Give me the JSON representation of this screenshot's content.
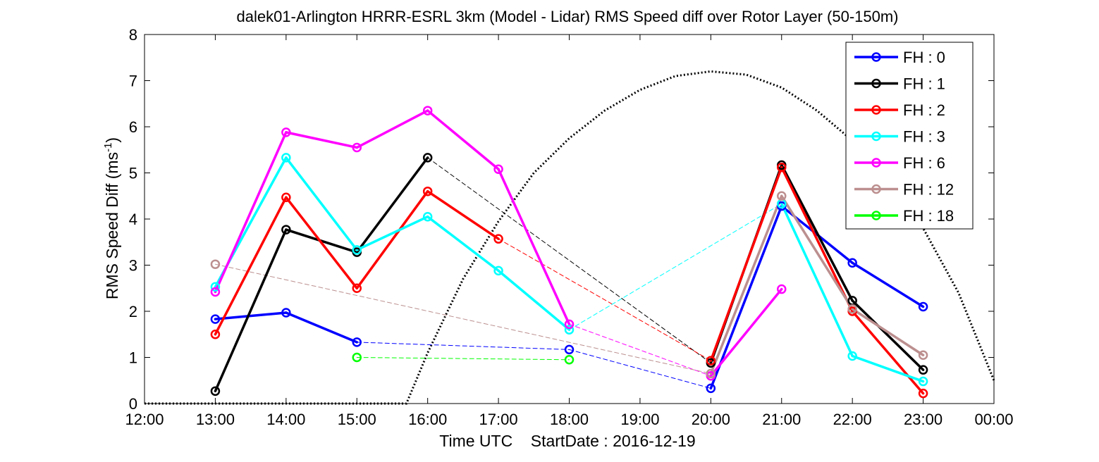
{
  "chart_data": {
    "type": "line",
    "title": "dalek01-Arlington HRRR-ESRL 3km (Model - Lidar) RMS Speed diff over Rotor Layer (50-150m)",
    "xlabel": "Time UTC    StartDate : 2016-12-19",
    "ylabel_main": "RMS Speed Diff (ms",
    "ylabel_sup": "-1",
    "ylabel_tail": ")",
    "xlim": [
      12,
      24
    ],
    "ylim": [
      0,
      8
    ],
    "x_ticks": [
      12,
      13,
      14,
      15,
      16,
      17,
      18,
      19,
      20,
      21,
      22,
      23,
      24
    ],
    "x_tick_labels": [
      "12:00",
      "13:00",
      "14:00",
      "15:00",
      "16:00",
      "17:00",
      "18:00",
      "19:00",
      "20:00",
      "21:00",
      "22:00",
      "23:00",
      "00:00"
    ],
    "y_ticks": [
      0,
      1,
      2,
      3,
      4,
      5,
      6,
      7,
      8
    ],
    "y_tick_labels": [
      "0",
      "1",
      "2",
      "3",
      "4",
      "5",
      "6",
      "7",
      "8"
    ],
    "legend_position": "top-right",
    "series": [
      {
        "name": "FH : 0",
        "color": "#0000ff",
        "points": [
          [
            13,
            1.83
          ],
          [
            14,
            1.97
          ],
          [
            15,
            1.33
          ],
          [
            18,
            1.17
          ],
          [
            20,
            0.33
          ],
          [
            21,
            4.28
          ],
          [
            22,
            3.05
          ],
          [
            23,
            2.1
          ]
        ]
      },
      {
        "name": "FH : 1",
        "color": "#000000",
        "points": [
          [
            13,
            0.27
          ],
          [
            14,
            3.77
          ],
          [
            15,
            3.28
          ],
          [
            16,
            5.33
          ],
          [
            20,
            0.88
          ],
          [
            21,
            5.17
          ],
          [
            22,
            2.23
          ],
          [
            23,
            0.73
          ]
        ]
      },
      {
        "name": "FH : 2",
        "color": "#ff0000",
        "points": [
          [
            13,
            1.5
          ],
          [
            14,
            4.47
          ],
          [
            15,
            2.5
          ],
          [
            16,
            4.6
          ],
          [
            17,
            3.57
          ],
          [
            20,
            0.93
          ],
          [
            21,
            5.12
          ],
          [
            22,
            2.0
          ],
          [
            23,
            0.22
          ]
        ]
      },
      {
        "name": "FH : 3",
        "color": "#00ffff",
        "points": [
          [
            13,
            2.53
          ],
          [
            14,
            5.33
          ],
          [
            15,
            3.33
          ],
          [
            16,
            4.05
          ],
          [
            17,
            2.88
          ],
          [
            18,
            1.6
          ],
          [
            21,
            4.33
          ],
          [
            22,
            1.03
          ],
          [
            23,
            0.48
          ]
        ]
      },
      {
        "name": "FH : 6",
        "color": "#ff00ff",
        "points": [
          [
            13,
            2.42
          ],
          [
            14,
            5.88
          ],
          [
            15,
            5.55
          ],
          [
            16,
            6.35
          ],
          [
            17,
            5.08
          ],
          [
            18,
            1.72
          ],
          [
            20,
            0.6
          ],
          [
            21,
            2.48
          ]
        ]
      },
      {
        "name": "FH : 12",
        "color": "#bc8f8f",
        "points": [
          [
            13,
            3.02
          ],
          [
            20,
            0.65
          ],
          [
            21,
            4.5
          ],
          [
            22,
            2.05
          ],
          [
            23,
            1.05
          ]
        ]
      },
      {
        "name": "FH : 18",
        "color": "#00ff00",
        "points": [
          [
            15,
            1.0
          ],
          [
            18,
            0.95
          ]
        ]
      }
    ],
    "reference_curve": {
      "style": "dotted",
      "color": "#000000",
      "points": [
        [
          12.0,
          0.0
        ],
        [
          15.5,
          0.0
        ],
        [
          15.7,
          0.0
        ],
        [
          16.0,
          1.1
        ],
        [
          16.5,
          2.7
        ],
        [
          17.0,
          3.95
        ],
        [
          17.5,
          5.0
        ],
        [
          18.0,
          5.75
        ],
        [
          18.5,
          6.35
        ],
        [
          19.0,
          6.8
        ],
        [
          19.5,
          7.1
        ],
        [
          20.0,
          7.2
        ],
        [
          20.5,
          7.13
        ],
        [
          21.0,
          6.85
        ],
        [
          21.5,
          6.35
        ],
        [
          22.0,
          5.7
        ],
        [
          22.5,
          4.85
        ],
        [
          23.0,
          3.8
        ],
        [
          23.5,
          2.4
        ],
        [
          24.0,
          0.5
        ]
      ]
    }
  }
}
